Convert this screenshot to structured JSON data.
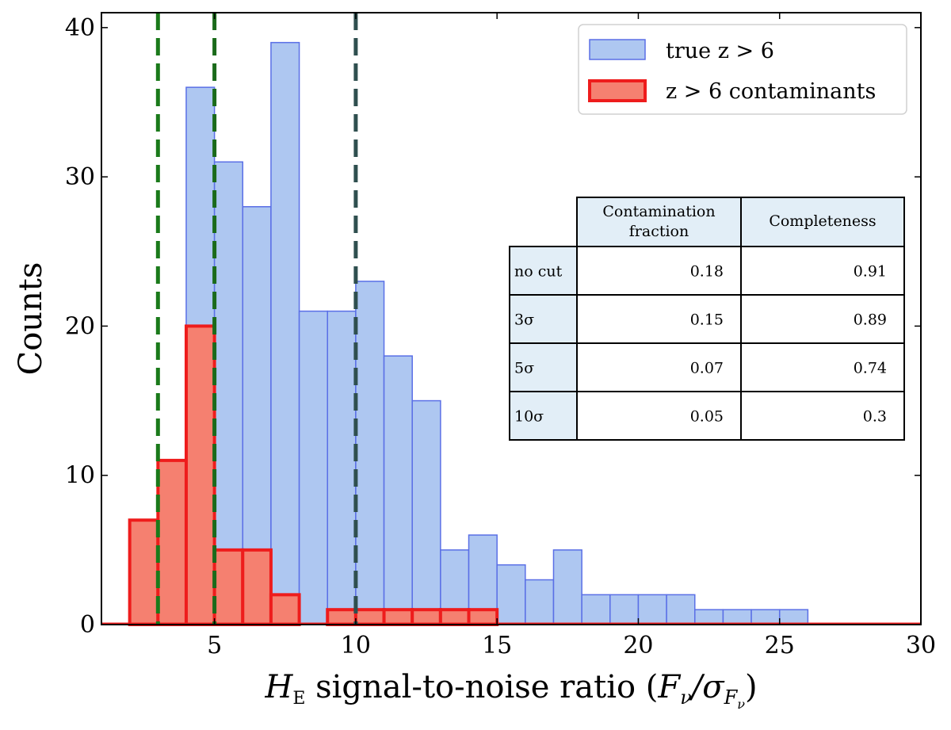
{
  "chart_data": {
    "type": "bar",
    "title": "",
    "xlabel": "H_E signal-to-noise ratio (F_ν/σ_Fν)",
    "xlabel_parts": {
      "symbol": "H",
      "subscript": "E",
      "text": " signal-to-noise ratio (",
      "symbol2": "F",
      "sub2": "ν",
      "slash": "/σ",
      "sub3": "F",
      "sub4": "ν",
      "close": ")"
    },
    "ylabel": "Counts",
    "xlim": [
      1,
      30
    ],
    "ylim": [
      0,
      41
    ],
    "xticks": [
      5,
      10,
      15,
      20,
      25,
      30
    ],
    "yticks": [
      0,
      10,
      20,
      30,
      40
    ],
    "bin_width": 1,
    "series": [
      {
        "name": "true z > 6",
        "legend_label": "true z > 6",
        "color": "#aec7f1",
        "edge_color": "#5a6fe6",
        "bin_starts": [
          4,
          5,
          6,
          7,
          8,
          9,
          10,
          11,
          12,
          13,
          14,
          15,
          16,
          17,
          18,
          19,
          20,
          21,
          22,
          23,
          24,
          25
        ],
        "values": [
          36,
          31,
          28,
          39,
          21,
          21,
          23,
          18,
          15,
          5,
          6,
          4,
          3,
          5,
          2,
          2,
          2,
          2,
          1,
          1,
          1,
          1
        ]
      },
      {
        "name": "z > 6 contaminants",
        "legend_label": "z > 6 contaminants",
        "color": "#f58070",
        "edge_color": "#ee1c1c",
        "bin_starts": [
          2,
          3,
          4,
          5,
          6,
          7,
          8,
          9,
          10,
          11,
          12,
          13,
          14
        ],
        "values": [
          7,
          11,
          20,
          5,
          5,
          2,
          0,
          1,
          1,
          1,
          1,
          1,
          1
        ]
      }
    ],
    "vlines": [
      {
        "x": 3,
        "color": "#1a7a1a"
      },
      {
        "x": 5,
        "color": "#1a6a1a"
      },
      {
        "x": 10,
        "color": "#2f4f4f"
      }
    ],
    "legend_position": "top-right",
    "table": {
      "headers": [
        "",
        "Contamination fraction",
        "Completeness"
      ],
      "header_lines": [
        [
          "Contamination",
          "fraction"
        ],
        [
          "Completeness"
        ]
      ],
      "rows": [
        {
          "label": "no cut",
          "contamination": "0.18",
          "completeness": "0.91"
        },
        {
          "label": "3σ",
          "contamination": "0.15",
          "completeness": "0.89"
        },
        {
          "label": "5σ",
          "contamination": "0.07",
          "completeness": "0.74"
        },
        {
          "label": "10σ",
          "contamination": "0.05",
          "completeness": "0.3"
        }
      ],
      "header_bg": "#e2eef7"
    }
  }
}
